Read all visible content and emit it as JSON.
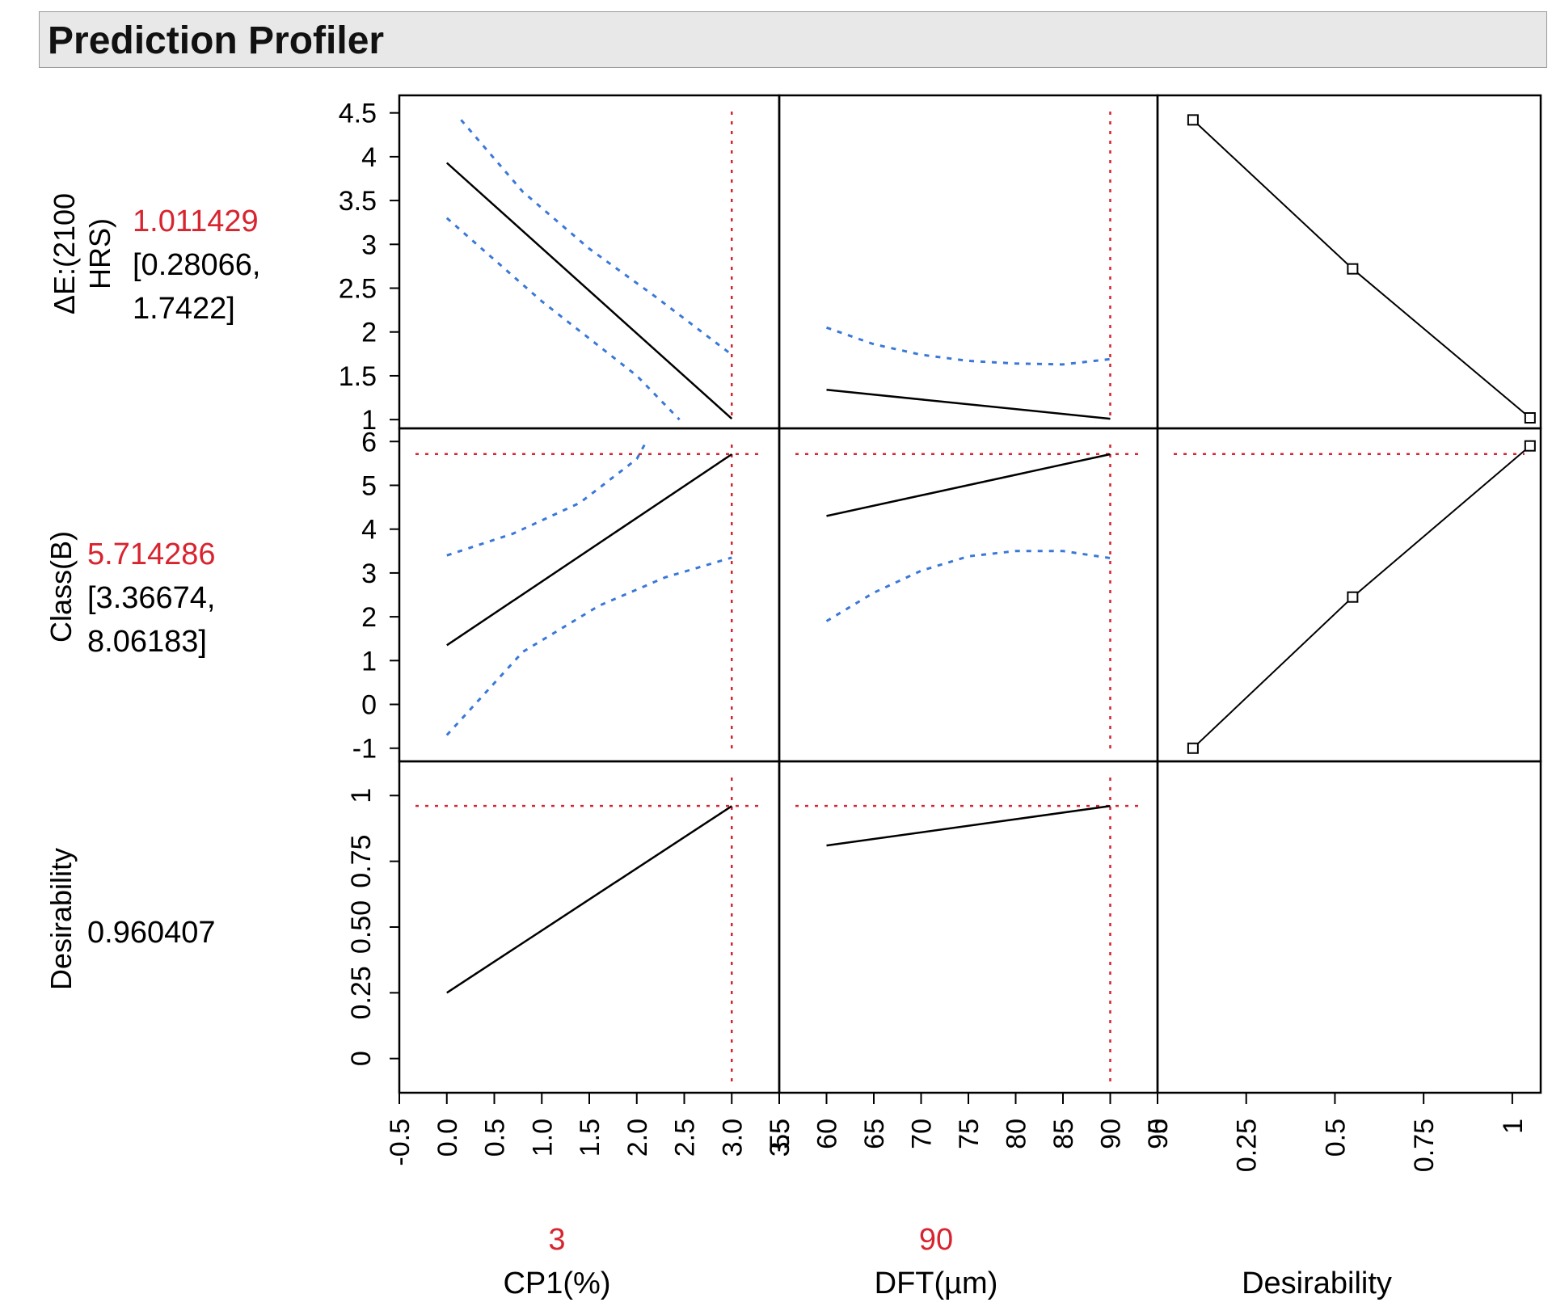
{
  "header": {
    "title": "Prediction Profiler"
  },
  "colors": {
    "predict": "#000000",
    "ci": "#3a78d8",
    "ref": "#d8242f",
    "value_red": "#d8242f",
    "axis": "#000000"
  },
  "chart_data": {
    "type": "line",
    "title": "Prediction Profiler",
    "grid": false,
    "factors": [
      {
        "label": "CP1(%)",
        "value": "3",
        "current": 3,
        "range": [
          -0.5,
          3.5
        ],
        "ticks": [
          -0.5,
          0.0,
          0.5,
          1.0,
          1.5,
          2.0,
          2.5,
          3.0,
          3.5
        ],
        "tick_labels": [
          "-0.5",
          "0.0",
          "0.5",
          "1.0",
          "1.5",
          "2.0",
          "2.5",
          "3.0",
          "3.5"
        ]
      },
      {
        "label": "DFT(µm)",
        "value": "90",
        "current": 90,
        "range": [
          55,
          95
        ],
        "ticks": [
          55,
          60,
          65,
          70,
          75,
          80,
          85,
          90,
          95
        ],
        "tick_labels": [
          "55",
          "60",
          "65",
          "70",
          "75",
          "80",
          "85",
          "90",
          "95"
        ]
      },
      {
        "label": "Desirability",
        "value": "",
        "current": null,
        "range": [
          0,
          1.08
        ],
        "ticks": [
          0,
          0.25,
          0.5,
          0.75,
          1
        ],
        "tick_labels": [
          "0",
          "0.25",
          "0.5",
          "0.75",
          "1"
        ]
      }
    ],
    "responses": [
      {
        "label_lines": [
          "ΔE:(2100",
          "HRS)"
        ],
        "value": "1.011429",
        "ci": [
          "[0.28066,",
          "1.7422]"
        ],
        "current": 1.011429,
        "range": [
          0.9,
          4.7
        ],
        "ticks": [
          1,
          1.5,
          2,
          2.5,
          3,
          3.5,
          4,
          4.5
        ],
        "tick_labels": [
          "1",
          "1.5",
          "2",
          "2.5",
          "3",
          "3.5",
          "4",
          "4.5"
        ],
        "show_h_ref": false
      },
      {
        "label_lines": [
          "Class(B)"
        ],
        "value": "5.714286",
        "ci": [
          "[3.36674,",
          "8.06183]"
        ],
        "current": 5.714286,
        "range": [
          -1.3,
          6.3
        ],
        "ticks": [
          -1,
          0,
          1,
          2,
          3,
          4,
          5,
          6
        ],
        "tick_labels": [
          "-1",
          "0",
          "1",
          "2",
          "3",
          "4",
          "5",
          "6"
        ],
        "show_h_ref": true
      },
      {
        "label_lines": [
          "Desirability"
        ],
        "value": "0.960407",
        "ci": [],
        "current": 0.960407,
        "range": [
          -0.13,
          1.13
        ],
        "ticks": [
          0,
          0.25,
          0.5,
          0.75,
          1
        ],
        "tick_labels": [
          "0",
          "0.25",
          "0.50",
          "0.75",
          "1"
        ],
        "show_h_ref": true,
        "rotated_ticks": true
      }
    ],
    "curves": [
      [
        {
          "predict": [
            [
              0,
              3.93
            ],
            [
              3,
              1.01
            ]
          ],
          "upper": [
            [
              0.15,
              4.42
            ],
            [
              0.8,
              3.6
            ],
            [
              1.5,
              2.95
            ],
            [
              2.2,
              2.4
            ],
            [
              3,
              1.74
            ]
          ],
          "lower": [
            [
              0,
              3.3
            ],
            [
              1.0,
              2.35
            ],
            [
              2.0,
              1.5
            ],
            [
              2.45,
              1.0
            ]
          ]
        },
        {
          "predict": [
            [
              60,
              1.34
            ],
            [
              90,
              1.01
            ]
          ],
          "upper": [
            [
              60,
              2.05
            ],
            [
              65,
              1.86
            ],
            [
              70,
              1.74
            ],
            [
              75,
              1.67
            ],
            [
              80,
              1.64
            ],
            [
              85,
              1.63
            ],
            [
              90,
              1.69
            ]
          ],
          "lower": []
        },
        {
          "function": [
            [
              0.1,
              4.42
            ],
            [
              0.55,
              2.72
            ],
            [
              1.05,
              1.02
            ]
          ],
          "markers": [
            [
              0.1,
              4.42
            ],
            [
              0.55,
              2.72
            ],
            [
              1.05,
              1.02
            ]
          ]
        }
      ],
      [
        {
          "predict": [
            [
              0,
              1.35
            ],
            [
              3,
              5.71
            ]
          ],
          "upper": [
            [
              0,
              3.4
            ],
            [
              0.7,
              3.9
            ],
            [
              1.4,
              4.6
            ],
            [
              2.0,
              5.6
            ],
            [
              2.1,
              6.0
            ]
          ],
          "lower": [
            [
              0,
              -0.7
            ],
            [
              0.8,
              1.2
            ],
            [
              1.6,
              2.25
            ],
            [
              2.3,
              2.9
            ],
            [
              3,
              3.35
            ]
          ]
        },
        {
          "predict": [
            [
              60,
              4.3
            ],
            [
              90,
              5.71
            ]
          ],
          "upper": [],
          "lower": [
            [
              60,
              1.9
            ],
            [
              65,
              2.55
            ],
            [
              70,
              3.05
            ],
            [
              75,
              3.38
            ],
            [
              80,
              3.5
            ],
            [
              85,
              3.5
            ],
            [
              90,
              3.34
            ]
          ]
        },
        {
          "function": [
            [
              0.1,
              -1.0
            ],
            [
              0.55,
              2.45
            ],
            [
              1.05,
              5.9
            ]
          ],
          "markers": [
            [
              0.1,
              -1.0
            ],
            [
              0.55,
              2.45
            ],
            [
              1.05,
              5.9
            ]
          ]
        }
      ],
      [
        {
          "predict": [
            [
              0,
              0.25
            ],
            [
              3,
              0.96
            ]
          ],
          "upper": [],
          "lower": []
        },
        {
          "predict": [
            [
              60,
              0.81
            ],
            [
              90,
              0.96
            ]
          ],
          "upper": [],
          "lower": []
        },
        null
      ]
    ]
  }
}
